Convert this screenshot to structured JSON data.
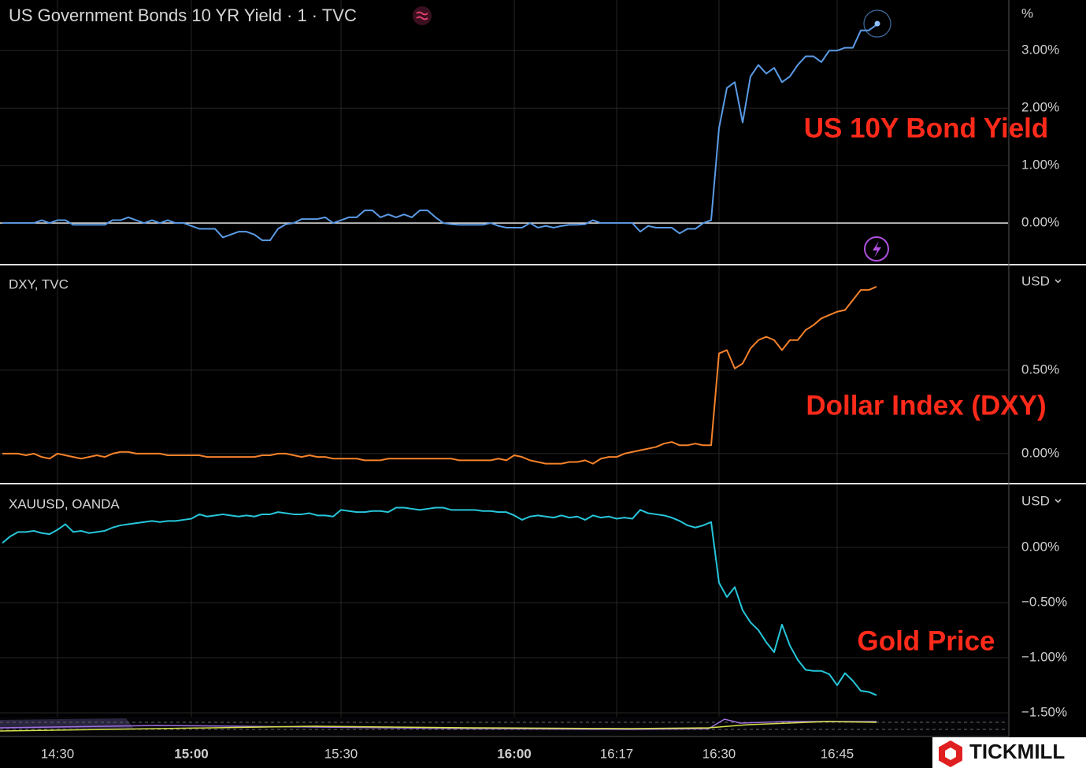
{
  "chart_data": [
    {
      "type": "line",
      "title": "US Government Bonds 10 YR Yield · 1 · TVC",
      "unit": "%",
      "annotation": "US 10Y Bond Yield",
      "annotation_color": "#ff2a1a",
      "zero_line": true,
      "grid": true,
      "series": [
        {
          "name": "US10Y",
          "color": "#5b9be6",
          "values": [
            0,
            0,
            0,
            0,
            0,
            0.05,
            0,
            0.05,
            0.05,
            -0.03,
            -0.03,
            -0.03,
            -0.03,
            -0.03,
            0.05,
            0.05,
            0.1,
            0.05,
            0,
            0.05,
            0,
            0.05,
            0,
            0,
            -0.05,
            -0.1,
            -0.1,
            -0.1,
            -0.25,
            -0.2,
            -0.15,
            -0.15,
            -0.2,
            -0.3,
            -0.3,
            -0.1,
            -0.02,
            0,
            0.07,
            0.07,
            0.07,
            0.1,
            0,
            0.05,
            0.1,
            0.1,
            0.22,
            0.22,
            0.1,
            0.15,
            0.1,
            0.15,
            0.1,
            0.22,
            0.22,
            0.1,
            0,
            -0.02,
            -0.03,
            -0.03,
            -0.03,
            -0.03,
            0,
            -0.05,
            -0.08,
            -0.08,
            -0.08,
            0,
            -0.08,
            -0.05,
            -0.08,
            -0.05,
            -0.03,
            -0.03,
            -0.02,
            0.05,
            0,
            0,
            0,
            0,
            0,
            -0.15,
            -0.05,
            -0.08,
            -0.08,
            -0.08,
            -0.18,
            -0.1,
            -0.1,
            0,
            0.05,
            1.65,
            2.35,
            2.45,
            1.75,
            2.55,
            2.75,
            2.6,
            2.7,
            2.45,
            2.55,
            2.75,
            2.9,
            2.9,
            2.8,
            3.0,
            3.0,
            3.05,
            3.05,
            3.35,
            3.35,
            3.45
          ]
        }
      ],
      "ylim": [
        -0.71,
        3.88
      ],
      "yticks": [
        {
          "value": 0,
          "label": "0.00%"
        },
        {
          "value": 1,
          "label": "1.00%"
        },
        {
          "value": 2,
          "label": "2.00%"
        },
        {
          "value": 3,
          "label": "3.00%"
        }
      ]
    },
    {
      "type": "line",
      "title": "DXY, TVC",
      "unit": "USD",
      "annotation": "Dollar Index (DXY)",
      "annotation_color": "#ff2a1a",
      "grid": true,
      "series": [
        {
          "name": "DXY",
          "color": "#f5822a",
          "values": [
            0,
            0,
            0,
            -0.01,
            0,
            -0.02,
            -0.03,
            0,
            -0.01,
            -0.02,
            -0.03,
            -0.02,
            -0.01,
            -0.02,
            0,
            0.01,
            0.01,
            0,
            0,
            0,
            0,
            -0.01,
            -0.01,
            -0.01,
            -0.01,
            -0.01,
            -0.02,
            -0.02,
            -0.02,
            -0.02,
            -0.02,
            -0.02,
            -0.02,
            -0.01,
            -0.01,
            0,
            0,
            -0.01,
            -0.02,
            -0.01,
            -0.02,
            -0.02,
            -0.03,
            -0.03,
            -0.03,
            -0.03,
            -0.04,
            -0.04,
            -0.04,
            -0.03,
            -0.03,
            -0.03,
            -0.03,
            -0.03,
            -0.03,
            -0.03,
            -0.03,
            -0.03,
            -0.04,
            -0.04,
            -0.04,
            -0.04,
            -0.04,
            -0.03,
            -0.04,
            -0.01,
            -0.02,
            -0.04,
            -0.05,
            -0.06,
            -0.06,
            -0.06,
            -0.05,
            -0.05,
            -0.04,
            -0.06,
            -0.03,
            -0.02,
            -0.02,
            0,
            0.01,
            0.02,
            0.03,
            0.04,
            0.06,
            0.07,
            0.05,
            0.05,
            0.06,
            0.05,
            0.05,
            0.6,
            0.62,
            0.51,
            0.54,
            0.63,
            0.68,
            0.7,
            0.68,
            0.62,
            0.68,
            0.68,
            0.74,
            0.77,
            0.81,
            0.83,
            0.85,
            0.86,
            0.92,
            0.98,
            0.98,
            1.0
          ]
        }
      ],
      "ylim": [
        -0.175,
        1.127
      ],
      "yticks": [
        {
          "value": 0,
          "label": "0.00%"
        },
        {
          "value": 0.5,
          "label": "0.50%"
        }
      ]
    },
    {
      "type": "line",
      "title": "XAUUSD, OANDA",
      "unit": "USD",
      "annotation": "Gold Price",
      "annotation_color": "#ff2a1a",
      "grid": true,
      "categories": [
        null,
        null,
        null,
        null,
        null,
        null,
        null,
        "14:30",
        null,
        null,
        null,
        null,
        null,
        null,
        null,
        null,
        null,
        null,
        null,
        null,
        null,
        null,
        null,
        null,
        "15:00",
        null,
        null,
        null,
        null,
        null,
        null,
        null,
        null,
        null,
        null,
        null,
        null,
        null,
        null,
        null,
        null,
        null,
        null,
        "15:30",
        null,
        null,
        null,
        null,
        null,
        null,
        null,
        null,
        null,
        null,
        null,
        null,
        null,
        null,
        null,
        null,
        null,
        null,
        null,
        null,
        null,
        "16:00",
        null,
        null,
        null,
        null,
        null,
        null,
        null,
        null,
        null,
        null,
        null,
        null,
        "16:17",
        null,
        null,
        null,
        null,
        null,
        null,
        null,
        null,
        null,
        null,
        null,
        null,
        "16:30",
        null,
        null,
        null,
        null,
        null,
        null,
        null,
        null,
        null,
        null,
        null,
        null,
        null,
        null,
        "16:45",
        null,
        null,
        null,
        null,
        null
      ],
      "series": [
        {
          "name": "XAUUSD",
          "color": "#26c6da",
          "values": [
            0.04,
            0.1,
            0.14,
            0.14,
            0.15,
            0.13,
            0.12,
            0.16,
            0.21,
            0.14,
            0.15,
            0.13,
            0.14,
            0.15,
            0.18,
            0.2,
            0.21,
            0.22,
            0.23,
            0.24,
            0.23,
            0.24,
            0.24,
            0.25,
            0.26,
            0.3,
            0.28,
            0.29,
            0.3,
            0.29,
            0.28,
            0.29,
            0.28,
            0.3,
            0.3,
            0.32,
            0.31,
            0.3,
            0.3,
            0.31,
            0.29,
            0.29,
            0.28,
            0.34,
            0.33,
            0.32,
            0.32,
            0.33,
            0.33,
            0.32,
            0.36,
            0.36,
            0.35,
            0.34,
            0.35,
            0.36,
            0.36,
            0.34,
            0.34,
            0.34,
            0.34,
            0.33,
            0.33,
            0.32,
            0.32,
            0.29,
            0.25,
            0.28,
            0.29,
            0.28,
            0.27,
            0.29,
            0.27,
            0.28,
            0.25,
            0.29,
            0.27,
            0.28,
            0.26,
            0.27,
            0.26,
            0.34,
            0.31,
            0.3,
            0.29,
            0.27,
            0.24,
            0.2,
            0.18,
            0.2,
            0.23,
            -0.32,
            -0.45,
            -0.36,
            -0.57,
            -0.68,
            -0.75,
            -0.86,
            -0.95,
            -0.7,
            -0.89,
            -1.02,
            -1.11,
            -1.12,
            -1.12,
            -1.15,
            -1.25,
            -1.14,
            -1.21,
            -1.3,
            -1.31,
            -1.34
          ]
        }
      ],
      "ylim": [
        -1.536,
        0.571
      ],
      "yticks": [
        {
          "value": 0,
          "label": "0.00%"
        },
        {
          "value": -0.5,
          "label": "−0.50%"
        },
        {
          "value": -1,
          "label": "−1.00%"
        },
        {
          "value": -1.5,
          "label": "−1.50%"
        }
      ]
    }
  ],
  "brand": "TICKMILL"
}
